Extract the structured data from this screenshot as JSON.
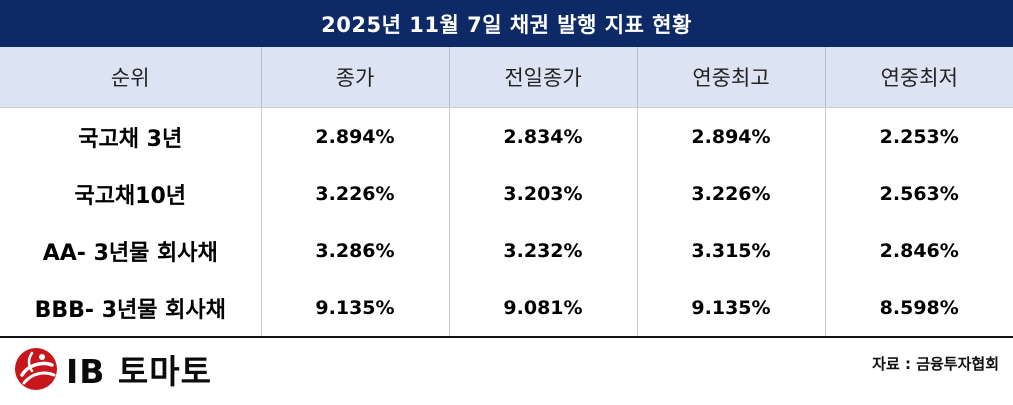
{
  "title": "2025년 11월 7일 채권 발행 지표 현황",
  "table": {
    "headers": [
      "순위",
      "종가",
      "전일종가",
      "연중최고",
      "연중최저"
    ],
    "rows": [
      [
        "국고채 3년",
        "2.894%",
        "2.834%",
        "2.894%",
        "2.253%"
      ],
      [
        "국고채10년",
        "3.226%",
        "3.203%",
        "3.226%",
        "2.563%"
      ],
      [
        "AA- 3년물 회사채",
        "3.286%",
        "3.232%",
        "3.315%",
        "2.846%"
      ],
      [
        "BBB- 3년물 회사채",
        "9.135%",
        "9.081%",
        "9.135%",
        "8.598%"
      ]
    ]
  },
  "footer": {
    "logo_text": "IB 토마토",
    "source": "자료 : 금융투자협회",
    "logo_mark_icon": "tomato-logo-icon",
    "logo_color": "#c8161d"
  },
  "colors": {
    "title_bg": "#0e2a66",
    "header_bg": "#dce3f2"
  }
}
